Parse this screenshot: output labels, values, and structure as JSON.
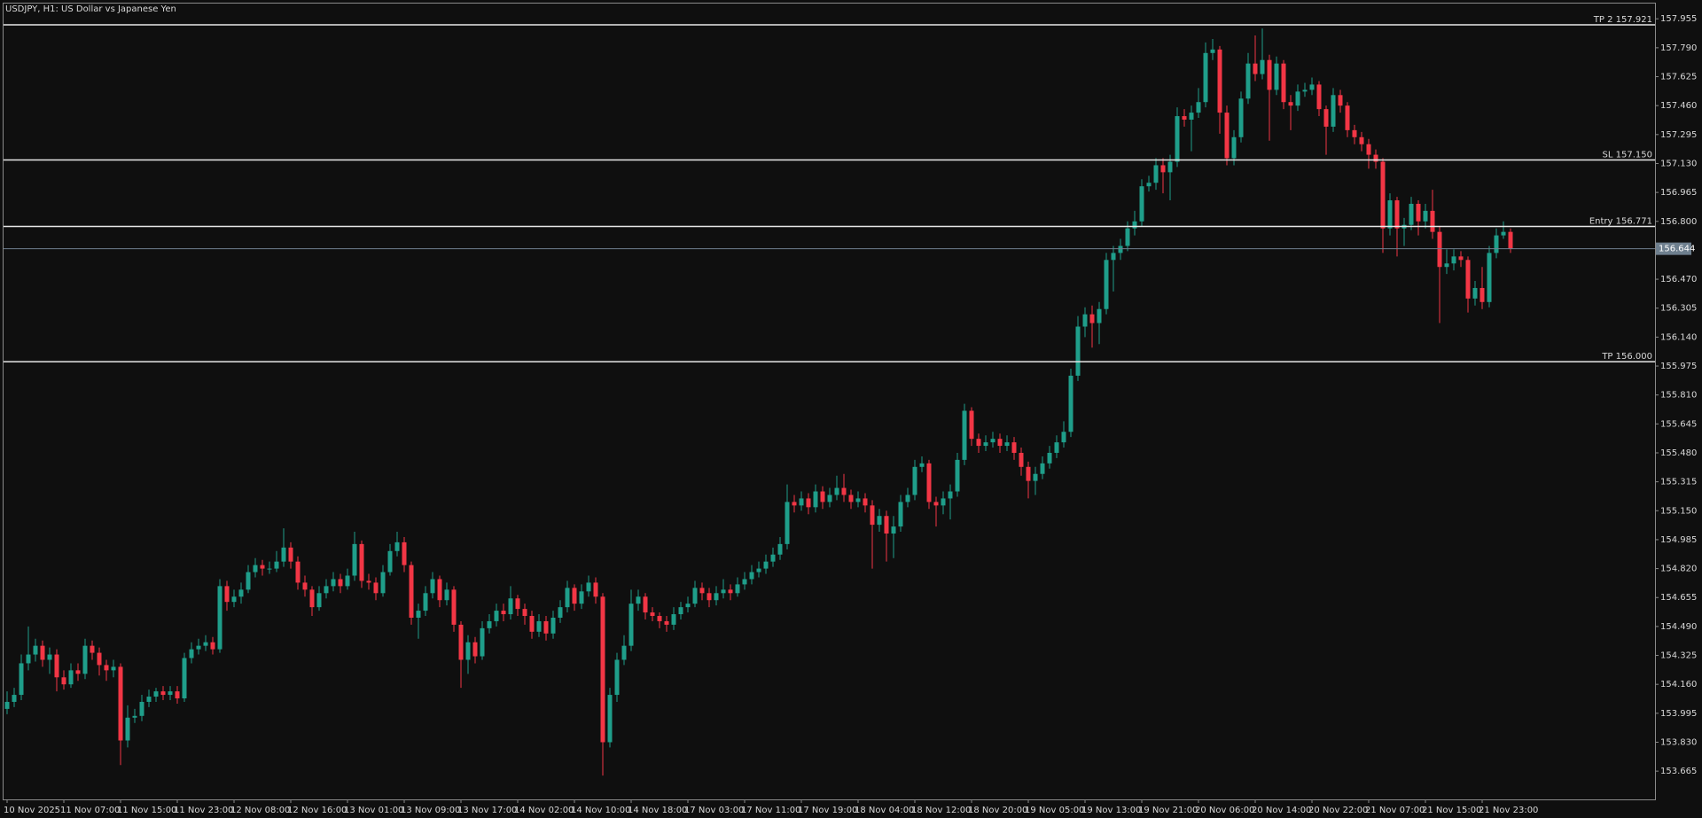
{
  "chart_data": {
    "type": "candlestick",
    "title": "USDJPY, H1:  US Dollar vs Japanese Yen",
    "up_color": "#1f9e8a",
    "down_color": "#f23645",
    "categories": [
      "10 Nov 2025",
      null,
      null,
      null,
      null,
      null,
      null,
      null,
      "11 Nov 07:00",
      null,
      null,
      null,
      null,
      null,
      null,
      null,
      "11 Nov 15:00",
      null,
      null,
      null,
      null,
      null,
      null,
      null,
      "11 Nov 23:00",
      null,
      null,
      null,
      null,
      null,
      null,
      null,
      "12 Nov 08:00",
      null,
      null,
      null,
      null,
      null,
      null,
      null,
      "12 Nov 16:00",
      null,
      null,
      null,
      null,
      null,
      null,
      null,
      "13 Nov 01:00",
      null,
      null,
      null,
      null,
      null,
      null,
      null,
      "13 Nov 09:00",
      null,
      null,
      null,
      null,
      null,
      null,
      null,
      "13 Nov 17:00",
      null,
      null,
      null,
      null,
      null,
      null,
      null,
      "14 Nov 02:00",
      null,
      null,
      null,
      null,
      null,
      null,
      null,
      "14 Nov 10:00",
      null,
      null,
      null,
      null,
      null,
      null,
      null,
      "14 Nov 18:00",
      null,
      null,
      null,
      null,
      null,
      null,
      null,
      "17 Nov 03:00",
      null,
      null,
      null,
      null,
      null,
      null,
      null,
      "17 Nov 11:00",
      null,
      null,
      null,
      null,
      null,
      null,
      null,
      "17 Nov 19:00",
      null,
      null,
      null,
      null,
      null,
      null,
      null,
      "18 Nov 04:00",
      null,
      null,
      null,
      null,
      null,
      null,
      null,
      "18 Nov 12:00",
      null,
      null,
      null,
      null,
      null,
      null,
      null,
      "18 Nov 20:00",
      null,
      null,
      null,
      null,
      null,
      null,
      null,
      "19 Nov 05:00",
      null,
      null,
      null,
      null,
      null,
      null,
      null,
      "19 Nov 13:00",
      null,
      null,
      null,
      null,
      null,
      null,
      null,
      "19 Nov 21:00",
      null,
      null,
      null,
      null,
      null,
      null,
      null,
      "20 Nov 06:00",
      null,
      null,
      null,
      null,
      null,
      null,
      null,
      "20 Nov 14:00",
      null,
      null,
      null,
      null,
      null,
      null,
      null,
      "20 Nov 22:00",
      null,
      null,
      null,
      null,
      null,
      null,
      null,
      "21 Nov 07:00",
      null,
      null,
      null,
      null,
      null,
      null,
      null,
      "21 Nov 15:00",
      null,
      null,
      null,
      null,
      null,
      null,
      null,
      "21 Nov 23:00",
      null,
      null,
      null,
      null
    ],
    "open": [
      154.02,
      154.06,
      154.1,
      154.28,
      154.33,
      154.38,
      154.3,
      154.33,
      154.2,
      154.16,
      154.24,
      154.22,
      154.38,
      154.34,
      154.27,
      154.24,
      154.26,
      153.84,
      153.97,
      153.98,
      154.06,
      154.09,
      154.12,
      154.1,
      154.12,
      154.08,
      154.31,
      154.36,
      154.38,
      154.4,
      154.36,
      154.72,
      154.63,
      154.66,
      154.7,
      154.8,
      154.84,
      154.82,
      154.82,
      154.86,
      154.94,
      154.86,
      154.74,
      154.7,
      154.6,
      154.68,
      154.72,
      154.76,
      154.72,
      154.78,
      154.96,
      154.75,
      154.74,
      154.68,
      154.8,
      154.92,
      154.97,
      154.84,
      154.54,
      154.58,
      154.68,
      154.76,
      154.64,
      154.7,
      154.5,
      154.3,
      154.4,
      154.32,
      154.48,
      154.52,
      154.58,
      154.56,
      154.65,
      154.59,
      154.55,
      154.46,
      154.52,
      154.45,
      154.54,
      154.6,
      154.71,
      154.62,
      154.69,
      154.74,
      154.66,
      153.83,
      154.1,
      154.3,
      154.38,
      154.62,
      154.66,
      154.57,
      154.55,
      154.52,
      154.5,
      154.56,
      154.6,
      154.62,
      154.71,
      154.68,
      154.64,
      154.68,
      154.7,
      154.68,
      154.73,
      154.76,
      154.8,
      154.82,
      154.86,
      154.9,
      154.96,
      155.2,
      155.18,
      155.22,
      155.17,
      155.26,
      155.2,
      155.24,
      155.28,
      155.24,
      155.2,
      155.22,
      155.18,
      155.07,
      155.12,
      155.02,
      155.06,
      155.2,
      155.24,
      155.4,
      155.42,
      155.2,
      155.18,
      155.22,
      155.26,
      155.44,
      155.72,
      155.56,
      155.52,
      155.54,
      155.56,
      155.52,
      155.54,
      155.48,
      155.4,
      155.32,
      155.36,
      155.42,
      155.48,
      155.54,
      155.6,
      155.92,
      156.2,
      156.27,
      156.22,
      156.3,
      156.58,
      156.62,
      156.66,
      156.76,
      156.8,
      157.0,
      157.02,
      157.12,
      157.08,
      157.14,
      157.4,
      157.38,
      157.42,
      157.48,
      157.76,
      157.78,
      157.42,
      157.16,
      157.28,
      157.5,
      157.7,
      157.64,
      157.72,
      157.55,
      157.7,
      157.48,
      157.46,
      157.54,
      157.55,
      157.58,
      157.44,
      157.34,
      157.52,
      157.46,
      157.32,
      157.28,
      157.24,
      157.18,
      157.14,
      156.76,
      156.92,
      156.76,
      156.78,
      156.9,
      156.8,
      156.86,
      156.74,
      156.54,
      156.56,
      156.6,
      156.58,
      156.36,
      156.42,
      156.34,
      156.62,
      156.72,
      156.74
    ],
    "high": [
      154.12,
      154.14,
      154.33,
      154.49,
      154.42,
      154.41,
      154.37,
      154.36,
      154.24,
      154.28,
      154.28,
      154.42,
      154.41,
      154.37,
      154.3,
      154.3,
      154.28,
      154.04,
      154.02,
      154.1,
      154.13,
      154.14,
      154.15,
      154.15,
      154.15,
      154.34,
      154.4,
      154.42,
      154.44,
      154.43,
      154.76,
      154.75,
      154.7,
      154.74,
      154.84,
      154.88,
      154.87,
      154.86,
      154.92,
      155.05,
      154.97,
      154.89,
      154.78,
      154.72,
      154.72,
      154.76,
      154.8,
      154.79,
      154.82,
      155.03,
      154.98,
      154.79,
      154.77,
      154.84,
      154.96,
      155.03,
      155.0,
      154.86,
      154.62,
      154.72,
      154.8,
      154.78,
      154.74,
      154.72,
      154.52,
      154.44,
      154.43,
      154.52,
      154.56,
      154.62,
      154.62,
      154.72,
      154.67,
      154.62,
      154.58,
      154.56,
      154.55,
      154.58,
      154.64,
      154.75,
      154.73,
      154.73,
      154.78,
      154.77,
      154.68,
      154.14,
      154.34,
      154.44,
      154.7,
      154.7,
      154.68,
      154.6,
      154.57,
      154.55,
      154.6,
      154.63,
      154.66,
      154.75,
      154.74,
      154.71,
      154.72,
      154.76,
      154.73,
      154.77,
      154.8,
      154.84,
      154.86,
      154.9,
      154.94,
      155.0,
      155.3,
      155.24,
      155.26,
      155.25,
      155.3,
      155.29,
      155.28,
      155.35,
      155.36,
      155.27,
      155.26,
      155.25,
      155.21,
      155.16,
      155.15,
      155.12,
      155.24,
      155.28,
      155.44,
      155.46,
      155.44,
      155.23,
      155.26,
      155.3,
      155.48,
      155.76,
      155.74,
      155.59,
      155.58,
      155.6,
      155.59,
      155.58,
      155.57,
      155.51,
      155.43,
      155.4,
      155.46,
      155.52,
      155.58,
      155.66,
      155.96,
      156.26,
      156.31,
      156.32,
      156.34,
      156.62,
      156.66,
      156.7,
      156.8,
      156.86,
      157.04,
      157.06,
      157.16,
      157.16,
      157.18,
      157.45,
      157.44,
      157.46,
      157.56,
      157.82,
      157.84,
      157.8,
      157.46,
      157.32,
      157.54,
      157.76,
      157.86,
      157.9,
      157.75,
      157.74,
      157.72,
      157.52,
      157.58,
      157.59,
      157.62,
      157.6,
      157.46,
      157.56,
      157.55,
      157.48,
      157.35,
      157.31,
      157.27,
      157.21,
      157.16,
      156.96,
      156.94,
      156.82,
      156.94,
      156.92,
      156.9,
      156.98,
      156.77,
      156.64,
      156.64,
      156.63,
      156.6,
      156.46,
      156.54,
      156.66,
      156.76,
      156.8,
      156.76
    ],
    "low": [
      153.99,
      154.03,
      154.07,
      154.24,
      154.29,
      154.26,
      154.22,
      154.12,
      154.13,
      154.14,
      154.18,
      154.19,
      154.3,
      154.21,
      154.18,
      154.2,
      153.7,
      153.8,
      153.94,
      153.95,
      154.03,
      154.06,
      154.07,
      154.07,
      154.05,
      154.06,
      154.28,
      154.33,
      154.35,
      154.33,
      154.34,
      154.58,
      154.6,
      154.62,
      154.68,
      154.77,
      154.78,
      154.79,
      154.8,
      154.83,
      154.82,
      154.7,
      154.66,
      154.55,
      154.58,
      154.65,
      154.69,
      154.68,
      154.7,
      154.75,
      154.71,
      154.7,
      154.64,
      154.66,
      154.78,
      154.89,
      154.8,
      154.5,
      154.42,
      154.55,
      154.65,
      154.6,
      154.61,
      154.46,
      154.14,
      154.22,
      154.28,
      154.3,
      154.45,
      154.49,
      154.52,
      154.53,
      154.55,
      154.5,
      154.42,
      154.43,
      154.41,
      154.42,
      154.51,
      154.57,
      154.58,
      154.59,
      154.66,
      154.62,
      153.64,
      153.8,
      154.06,
      154.27,
      154.35,
      154.58,
      154.53,
      154.52,
      154.48,
      154.46,
      154.47,
      154.53,
      154.57,
      154.6,
      154.64,
      154.6,
      154.61,
      154.65,
      154.64,
      154.66,
      154.7,
      154.73,
      154.77,
      154.79,
      154.83,
      154.87,
      154.93,
      155.14,
      155.15,
      155.13,
      155.14,
      155.16,
      155.17,
      155.21,
      155.2,
      155.16,
      155.17,
      155.14,
      154.82,
      155.03,
      154.86,
      154.88,
      155.03,
      155.17,
      155.21,
      155.37,
      155.16,
      155.06,
      155.13,
      155.1,
      155.23,
      155.41,
      155.52,
      155.48,
      155.49,
      155.51,
      155.48,
      155.49,
      155.44,
      155.35,
      155.22,
      155.24,
      155.33,
      155.39,
      155.45,
      155.51,
      155.57,
      155.89,
      156.14,
      156.08,
      156.1,
      156.27,
      156.4,
      156.58,
      156.63,
      156.72,
      156.77,
      156.97,
      156.98,
      156.96,
      156.92,
      157.11,
      157.34,
      157.2,
      157.39,
      157.45,
      157.72,
      157.3,
      157.12,
      157.12,
      157.25,
      157.47,
      157.6,
      157.61,
      157.26,
      157.52,
      157.44,
      157.32,
      157.43,
      157.51,
      157.52,
      157.4,
      157.18,
      157.31,
      157.42,
      157.28,
      157.24,
      157.2,
      157.1,
      157.1,
      156.62,
      156.72,
      156.6,
      156.66,
      156.75,
      156.72,
      156.76,
      156.7,
      156.22,
      156.5,
      156.52,
      156.54,
      156.28,
      156.32,
      156.3,
      156.31,
      156.59,
      156.7,
      156.62
    ],
    "close": [
      154.06,
      154.1,
      154.28,
      154.33,
      154.38,
      154.3,
      154.33,
      154.2,
      154.16,
      154.24,
      154.22,
      154.38,
      154.34,
      154.27,
      154.24,
      154.26,
      153.84,
      153.97,
      153.98,
      154.06,
      154.09,
      154.12,
      154.1,
      154.12,
      154.08,
      154.31,
      154.36,
      154.38,
      154.4,
      154.36,
      154.72,
      154.63,
      154.66,
      154.7,
      154.8,
      154.84,
      154.82,
      154.82,
      154.86,
      154.94,
      154.86,
      154.74,
      154.7,
      154.6,
      154.68,
      154.72,
      154.76,
      154.72,
      154.78,
      154.96,
      154.75,
      154.74,
      154.68,
      154.8,
      154.92,
      154.97,
      154.84,
      154.54,
      154.58,
      154.68,
      154.76,
      154.64,
      154.7,
      154.5,
      154.3,
      154.4,
      154.32,
      154.48,
      154.52,
      154.58,
      154.56,
      154.65,
      154.59,
      154.55,
      154.46,
      154.52,
      154.45,
      154.54,
      154.6,
      154.71,
      154.62,
      154.69,
      154.74,
      154.66,
      153.83,
      154.1,
      154.3,
      154.38,
      154.62,
      154.66,
      154.57,
      154.55,
      154.52,
      154.5,
      154.56,
      154.6,
      154.62,
      154.71,
      154.68,
      154.64,
      154.68,
      154.7,
      154.68,
      154.73,
      154.76,
      154.8,
      154.82,
      154.86,
      154.9,
      154.96,
      155.2,
      155.18,
      155.22,
      155.17,
      155.26,
      155.2,
      155.24,
      155.28,
      155.24,
      155.2,
      155.22,
      155.18,
      155.07,
      155.12,
      155.02,
      155.06,
      155.2,
      155.24,
      155.4,
      155.42,
      155.2,
      155.18,
      155.22,
      155.26,
      155.44,
      155.72,
      155.56,
      155.52,
      155.54,
      155.56,
      155.52,
      155.54,
      155.48,
      155.4,
      155.32,
      155.36,
      155.42,
      155.48,
      155.54,
      155.6,
      155.92,
      156.2,
      156.27,
      156.22,
      156.3,
      156.58,
      156.62,
      156.66,
      156.76,
      156.8,
      157.0,
      157.02,
      157.12,
      157.08,
      157.14,
      157.4,
      157.38,
      157.42,
      157.48,
      157.76,
      157.78,
      157.42,
      157.16,
      157.28,
      157.5,
      157.7,
      157.64,
      157.72,
      157.55,
      157.7,
      157.48,
      157.46,
      157.54,
      157.55,
      157.58,
      157.44,
      157.34,
      157.52,
      157.46,
      157.32,
      157.28,
      157.24,
      157.18,
      157.14,
      156.76,
      156.92,
      156.76,
      156.78,
      156.9,
      156.8,
      156.86,
      156.74,
      156.54,
      156.56,
      156.6,
      156.58,
      156.36,
      156.42,
      156.34,
      156.62,
      156.72,
      156.74,
      156.644
    ],
    "ylim": [
      153.504,
      158.042
    ],
    "yticks": [
      157.955,
      {
        "value": 157.79,
        "label": "157.790"
      },
      157.625,
      {
        "value": 157.46,
        "label": "157.460"
      },
      157.295,
      {
        "value": 157.13,
        "label": "157.130"
      },
      156.965,
      {
        "value": 156.8,
        "label": "156.800"
      },
      {
        "value": 156.47,
        "label": "156.470"
      },
      156.305,
      {
        "value": 156.14,
        "label": "156.140"
      },
      155.975,
      {
        "value": 155.81,
        "label": "155.810"
      },
      155.645,
      {
        "value": 155.48,
        "label": "155.480"
      },
      155.315,
      {
        "value": 155.15,
        "label": "155.150"
      },
      154.985,
      {
        "value": 154.82,
        "label": "154.820"
      },
      154.655,
      {
        "value": 154.49,
        "label": "154.490"
      },
      154.325,
      {
        "value": 154.16,
        "label": "154.160"
      },
      153.995,
      {
        "value": 153.83,
        "label": "153.830"
      },
      153.665
    ],
    "levels": [
      {
        "value": 157.921,
        "label": "TP 2 157.921"
      },
      {
        "value": 157.15,
        "label": "SL 157.150"
      },
      {
        "value": 156.771,
        "label": "Entry 156.771"
      },
      {
        "value": 156.0,
        "label": "TP 156.000"
      }
    ],
    "last_price": 156.644
  }
}
